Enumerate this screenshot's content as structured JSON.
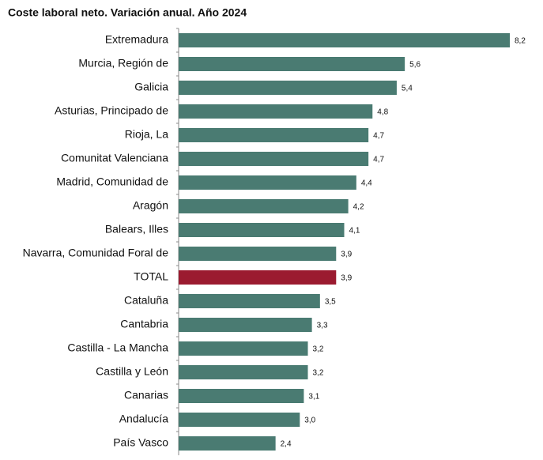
{
  "chart_data": {
    "type": "bar",
    "orientation": "horizontal",
    "title": "Coste laboral neto. Variación anual. Año 2024",
    "categories": [
      "Extremadura",
      "Murcia, Región de",
      "Galicia",
      "Asturias, Principado de",
      "Rioja, La",
      "Comunitat Valenciana",
      "Madrid, Comunidad de",
      "Aragón",
      "Balears, Illes",
      "Navarra, Comunidad Foral de",
      "TOTAL",
      "Cataluña",
      "Cantabria",
      "Castilla - La Mancha",
      "Castilla y León",
      "Canarias",
      "Andalucía",
      "País Vasco"
    ],
    "values": [
      8.2,
      5.6,
      5.4,
      4.8,
      4.7,
      4.7,
      4.4,
      4.2,
      4.1,
      3.9,
      3.9,
      3.5,
      3.3,
      3.2,
      3.2,
      3.1,
      3.0,
      2.4
    ],
    "value_labels": [
      "8,2",
      "5,6",
      "5,4",
      "4,8",
      "4,7",
      "4,7",
      "4,4",
      "4,2",
      "4,1",
      "3,9",
      "3,9",
      "3,5",
      "3,3",
      "3,2",
      "3,2",
      "3,1",
      "3,0",
      "2,4"
    ],
    "colors": [
      "#4a7b72",
      "#4a7b72",
      "#4a7b72",
      "#4a7b72",
      "#4a7b72",
      "#4a7b72",
      "#4a7b72",
      "#4a7b72",
      "#4a7b72",
      "#4a7b72",
      "#9b1b30",
      "#4a7b72",
      "#4a7b72",
      "#4a7b72",
      "#4a7b72",
      "#4a7b72",
      "#4a7b72",
      "#4a7b72"
    ]
  }
}
